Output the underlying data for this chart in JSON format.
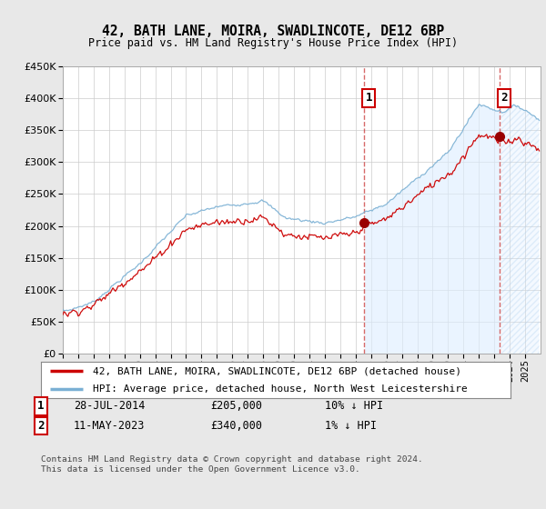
{
  "title": "42, BATH LANE, MOIRA, SWADLINCOTE, DE12 6BP",
  "subtitle": "Price paid vs. HM Land Registry's House Price Index (HPI)",
  "legend_line1": "42, BATH LANE, MOIRA, SWADLINCOTE, DE12 6BP (detached house)",
  "legend_line2": "HPI: Average price, detached house, North West Leicestershire",
  "transaction1_date": "28-JUL-2014",
  "transaction1_price": "£205,000",
  "transaction1_hpi": "10% ↓ HPI",
  "transaction2_date": "11-MAY-2023",
  "transaction2_price": "£340,000",
  "transaction2_hpi": "1% ↓ HPI",
  "footer": "Contains HM Land Registry data © Crown copyright and database right 2024.\nThis data is licensed under the Open Government Licence v3.0.",
  "price_line_color": "#cc0000",
  "hpi_line_color": "#7ab0d4",
  "hpi_fill_color": "#ddeeff",
  "vline_color": "#cc4444",
  "marker_color": "#990000",
  "background_color": "#e8e8e8",
  "plot_bg_color": "#ffffff",
  "grid_color": "#cccccc",
  "ylim": [
    0,
    450000
  ],
  "yticks": [
    0,
    50000,
    100000,
    150000,
    200000,
    250000,
    300000,
    350000,
    400000,
    450000
  ],
  "xlim_start": 1995,
  "xlim_end": 2026,
  "vline1_x": 2014.55,
  "vline2_x": 2023.36,
  "marker1_y": 205000,
  "marker2_y": 340000
}
